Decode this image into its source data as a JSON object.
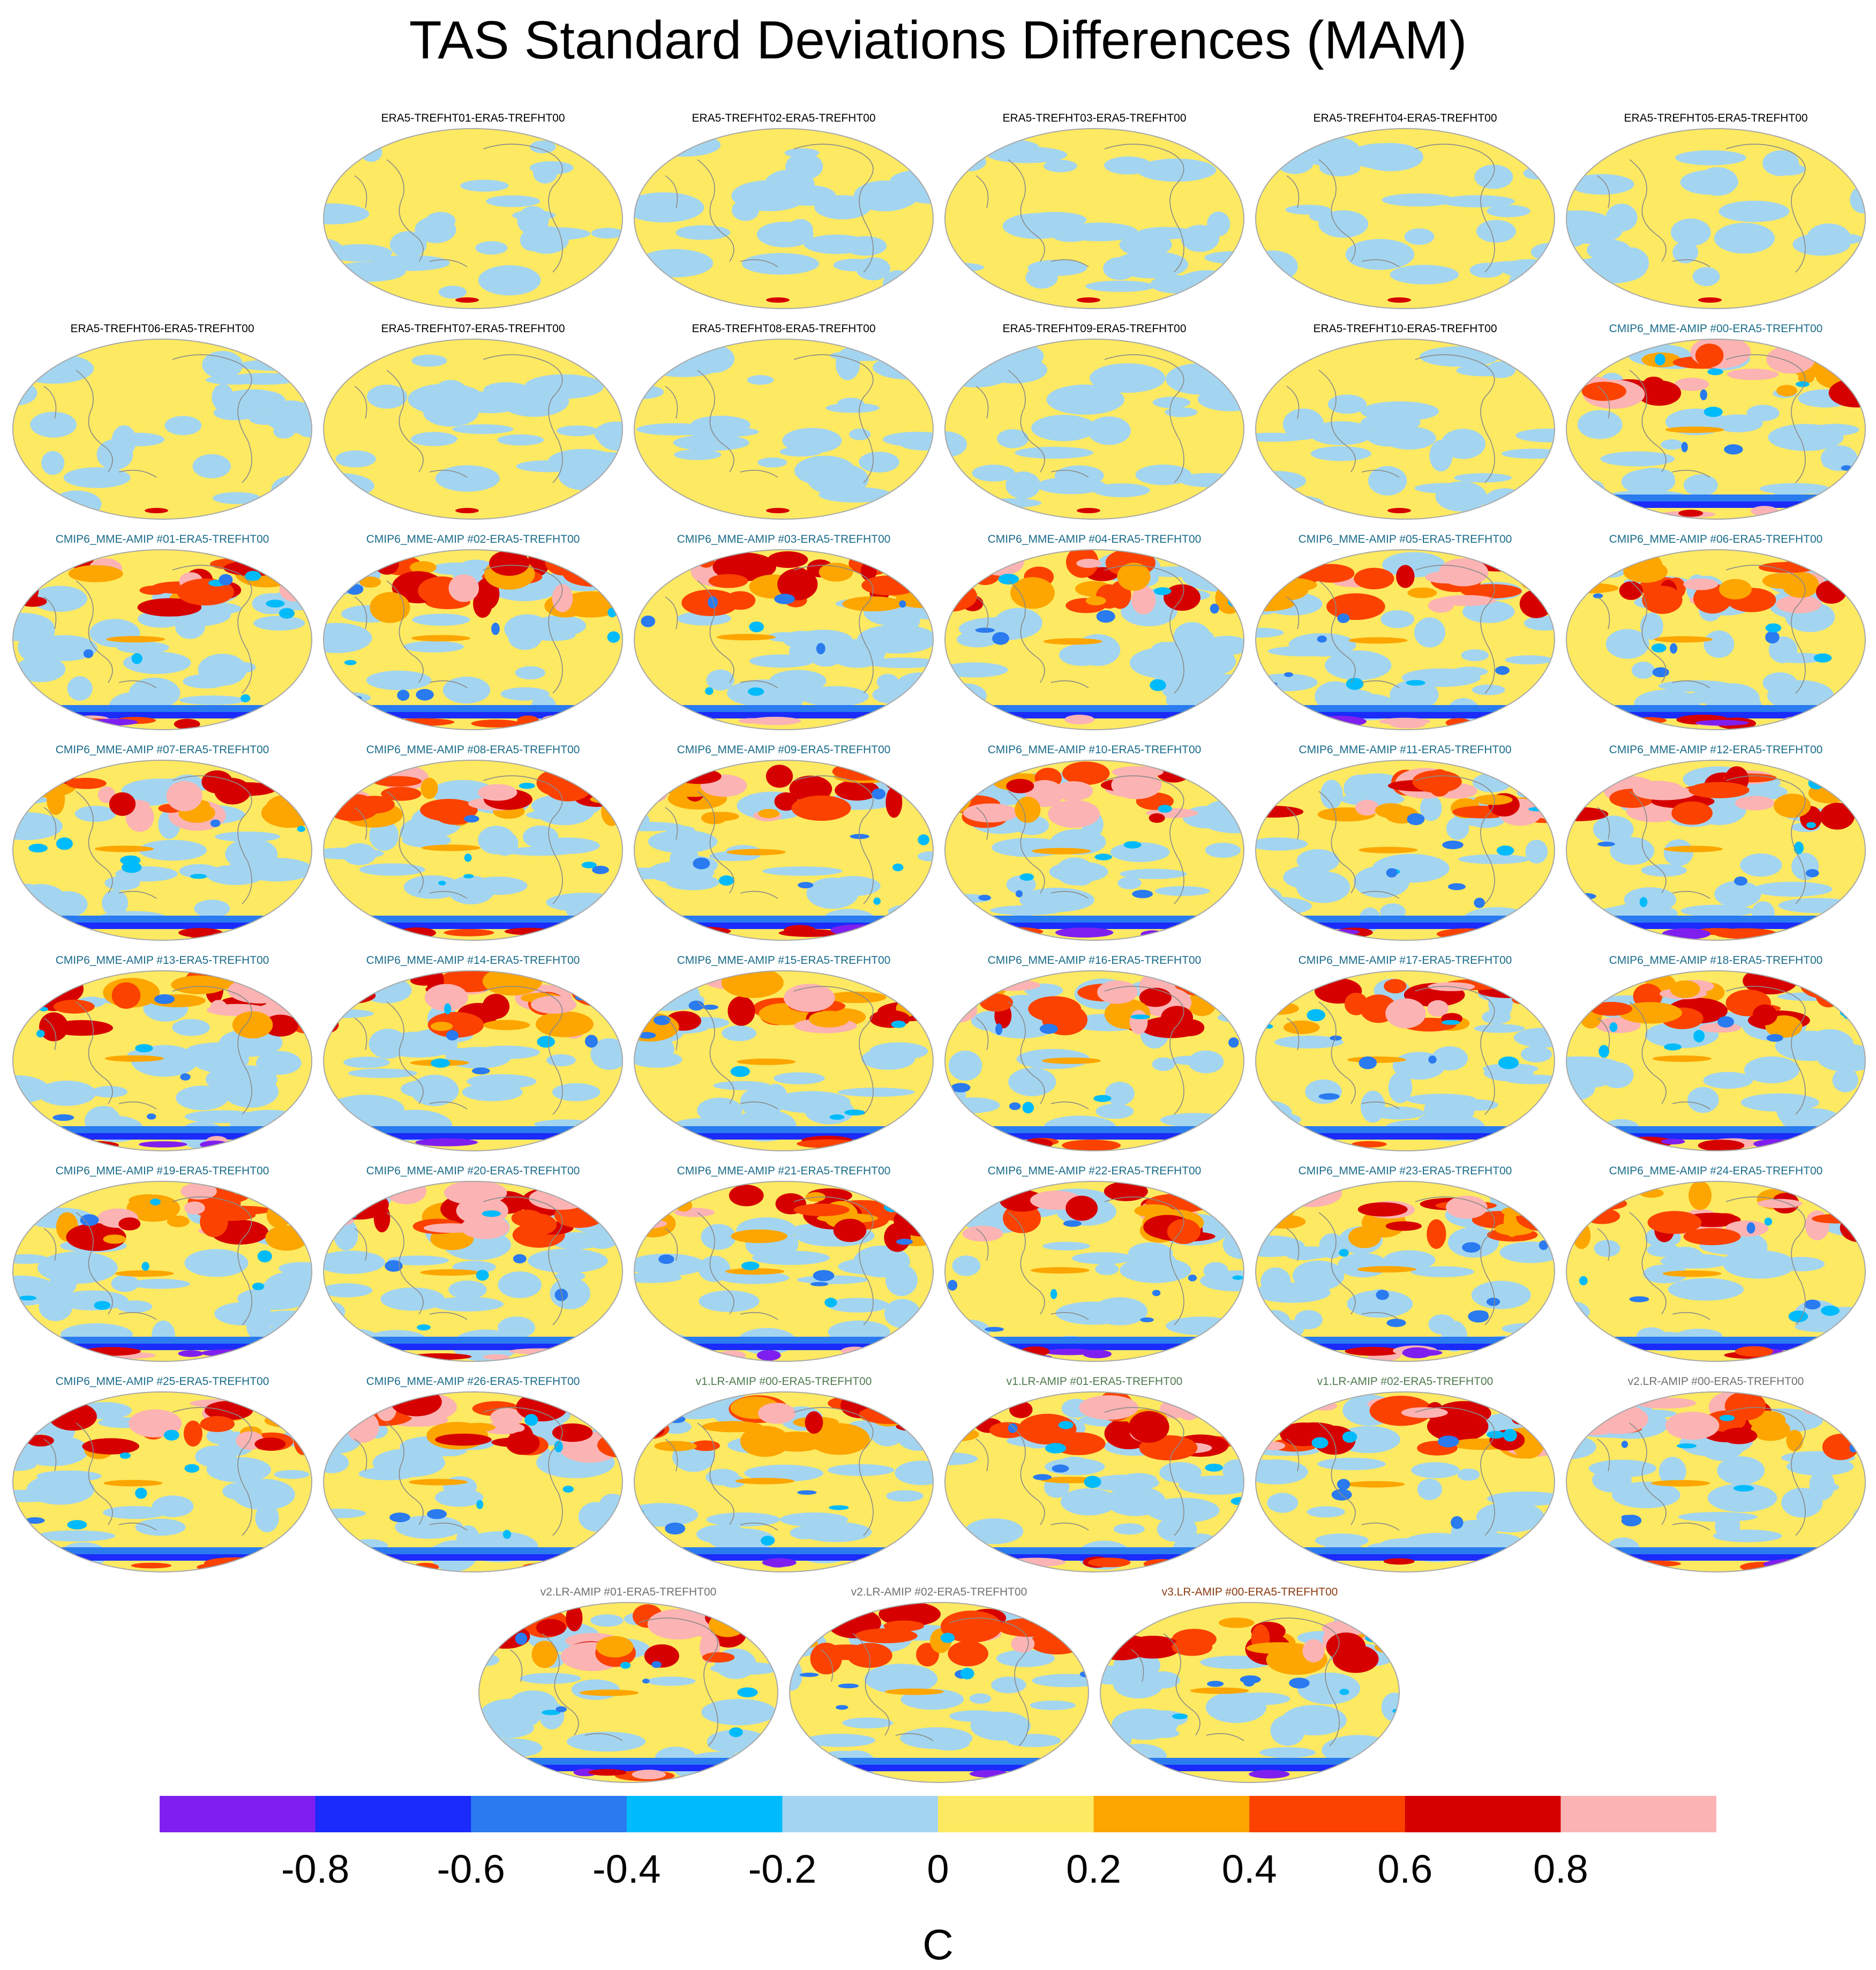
{
  "figure": {
    "title": "TAS Standard Deviations Differences (MAM)"
  },
  "panels": [
    {
      "label": "ERA5-TREFHT01-ERA5-TREFHT00",
      "group": "era5"
    },
    {
      "label": "ERA5-TREFHT02-ERA5-TREFHT00",
      "group": "era5"
    },
    {
      "label": "ERA5-TREFHT03-ERA5-TREFHT00",
      "group": "era5"
    },
    {
      "label": "ERA5-TREFHT04-ERA5-TREFHT00",
      "group": "era5"
    },
    {
      "label": "ERA5-TREFHT05-ERA5-TREFHT00",
      "group": "era5"
    },
    {
      "label": "ERA5-TREFHT06-ERA5-TREFHT00",
      "group": "era5"
    },
    {
      "label": "ERA5-TREFHT07-ERA5-TREFHT00",
      "group": "era5"
    },
    {
      "label": "ERA5-TREFHT08-ERA5-TREFHT00",
      "group": "era5"
    },
    {
      "label": "ERA5-TREFHT09-ERA5-TREFHT00",
      "group": "era5"
    },
    {
      "label": "ERA5-TREFHT10-ERA5-TREFHT00",
      "group": "era5"
    },
    {
      "label": "CMIP6_MME-AMIP  #00-ERA5-TREFHT00",
      "group": "cmip6"
    },
    {
      "label": "CMIP6_MME-AMIP  #01-ERA5-TREFHT00",
      "group": "cmip6"
    },
    {
      "label": "CMIP6_MME-AMIP  #02-ERA5-TREFHT00",
      "group": "cmip6"
    },
    {
      "label": "CMIP6_MME-AMIP  #03-ERA5-TREFHT00",
      "group": "cmip6"
    },
    {
      "label": "CMIP6_MME-AMIP  #04-ERA5-TREFHT00",
      "group": "cmip6"
    },
    {
      "label": "CMIP6_MME-AMIP  #05-ERA5-TREFHT00",
      "group": "cmip6"
    },
    {
      "label": "CMIP6_MME-AMIP  #06-ERA5-TREFHT00",
      "group": "cmip6"
    },
    {
      "label": "CMIP6_MME-AMIP  #07-ERA5-TREFHT00",
      "group": "cmip6"
    },
    {
      "label": "CMIP6_MME-AMIP  #08-ERA5-TREFHT00",
      "group": "cmip6"
    },
    {
      "label": "CMIP6_MME-AMIP  #09-ERA5-TREFHT00",
      "group": "cmip6"
    },
    {
      "label": "CMIP6_MME-AMIP  #10-ERA5-TREFHT00",
      "group": "cmip6"
    },
    {
      "label": "CMIP6_MME-AMIP  #11-ERA5-TREFHT00",
      "group": "cmip6"
    },
    {
      "label": "CMIP6_MME-AMIP  #12-ERA5-TREFHT00",
      "group": "cmip6"
    },
    {
      "label": "CMIP6_MME-AMIP  #13-ERA5-TREFHT00",
      "group": "cmip6"
    },
    {
      "label": "CMIP6_MME-AMIP  #14-ERA5-TREFHT00",
      "group": "cmip6"
    },
    {
      "label": "CMIP6_MME-AMIP  #15-ERA5-TREFHT00",
      "group": "cmip6"
    },
    {
      "label": "CMIP6_MME-AMIP  #16-ERA5-TREFHT00",
      "group": "cmip6"
    },
    {
      "label": "CMIP6_MME-AMIP  #17-ERA5-TREFHT00",
      "group": "cmip6"
    },
    {
      "label": "CMIP6_MME-AMIP  #18-ERA5-TREFHT00",
      "group": "cmip6"
    },
    {
      "label": "CMIP6_MME-AMIP  #19-ERA5-TREFHT00",
      "group": "cmip6"
    },
    {
      "label": "CMIP6_MME-AMIP  #20-ERA5-TREFHT00",
      "group": "cmip6"
    },
    {
      "label": "CMIP6_MME-AMIP  #21-ERA5-TREFHT00",
      "group": "cmip6"
    },
    {
      "label": "CMIP6_MME-AMIP  #22-ERA5-TREFHT00",
      "group": "cmip6"
    },
    {
      "label": "CMIP6_MME-AMIP  #23-ERA5-TREFHT00",
      "group": "cmip6"
    },
    {
      "label": "CMIP6_MME-AMIP  #24-ERA5-TREFHT00",
      "group": "cmip6"
    },
    {
      "label": "CMIP6_MME-AMIP  #25-ERA5-TREFHT00",
      "group": "cmip6"
    },
    {
      "label": "CMIP6_MME-AMIP  #26-ERA5-TREFHT00",
      "group": "cmip6"
    },
    {
      "label": "v1.LR-AMIP  #00-ERA5-TREFHT00",
      "group": "v1"
    },
    {
      "label": "v1.LR-AMIP  #01-ERA5-TREFHT00",
      "group": "v1"
    },
    {
      "label": "v1.LR-AMIP  #02-ERA5-TREFHT00",
      "group": "v1"
    },
    {
      "label": "v2.LR-AMIP  #00-ERA5-TREFHT00",
      "group": "v2"
    },
    {
      "label": "v2.LR-AMIP  #01-ERA5-TREFHT00",
      "group": "v2"
    },
    {
      "label": "v2.LR-AMIP  #02-ERA5-TREFHT00",
      "group": "v2"
    },
    {
      "label": "v3.LR-AMIP  #00-ERA5-TREFHT00",
      "group": "v3"
    }
  ],
  "group_colors": {
    "era5": "#000000",
    "cmip6": "#1a6b8a",
    "v1": "#4f7a4f",
    "v2": "#707070",
    "v3": "#8b3a10"
  },
  "colorbar": {
    "unit": "C",
    "tick_labels": [
      "-0.8",
      "-0.6",
      "-0.4",
      "-0.2",
      "0",
      "0.2",
      "0.4",
      "0.6",
      "0.8"
    ],
    "colors": [
      "#7f1fef",
      "#1a2bfb",
      "#2a7af0",
      "#00bbfb",
      "#a3d5f0",
      "#fde962",
      "#fda500",
      "#fb4200",
      "#d60000",
      "#fbb3b3"
    ]
  }
}
